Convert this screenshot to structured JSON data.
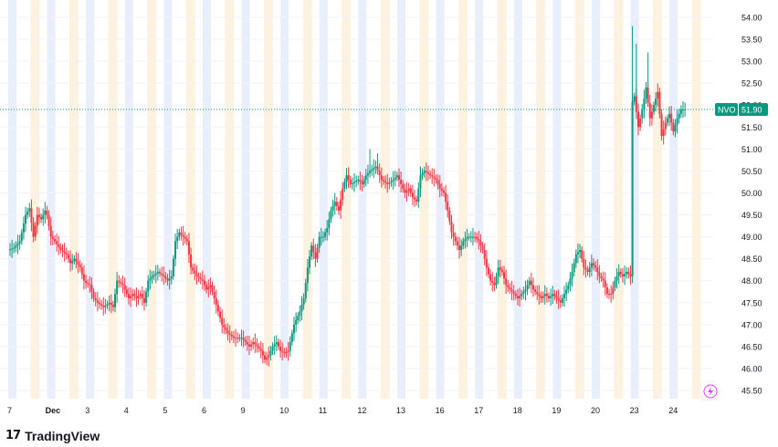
{
  "chart_data": {
    "type": "candlestick",
    "ticker": "NVO",
    "last_price_label": "51.90",
    "last_price": 51.9,
    "ylim": [
      45.3,
      54.3
    ],
    "y_ticks": [
      "54.00",
      "53.50",
      "53.00",
      "52.50",
      "52.00",
      "51.50",
      "51.00",
      "50.50",
      "50.00",
      "49.50",
      "49.00",
      "48.50",
      "48.00",
      "47.50",
      "47.00",
      "46.50",
      "46.00",
      "45.50"
    ],
    "x_labels": [
      {
        "label": "7",
        "day": 0
      },
      {
        "label": "Dec",
        "day": 1,
        "bold": true
      },
      {
        "label": "3",
        "day": 2
      },
      {
        "label": "4",
        "day": 3
      },
      {
        "label": "5",
        "day": 4
      },
      {
        "label": "6",
        "day": 5
      },
      {
        "label": "9",
        "day": 6
      },
      {
        "label": "10",
        "day": 7
      },
      {
        "label": "11",
        "day": 8
      },
      {
        "label": "12",
        "day": 9
      },
      {
        "label": "13",
        "day": 10
      },
      {
        "label": "16",
        "day": 11
      },
      {
        "label": "17",
        "day": 12
      },
      {
        "label": "18",
        "day": 13
      },
      {
        "label": "19",
        "day": 14
      },
      {
        "label": "20",
        "day": 15
      },
      {
        "label": "23",
        "day": 16
      },
      {
        "label": "24",
        "day": 17
      }
    ],
    "close_path": [
      [
        0.0,
        48.7
      ],
      [
        0.15,
        48.75
      ],
      [
        0.3,
        48.9
      ],
      [
        0.45,
        49.5
      ],
      [
        0.55,
        49.65
      ],
      [
        0.65,
        49.0
      ],
      [
        0.75,
        49.5
      ],
      [
        0.85,
        49.4
      ],
      [
        0.95,
        49.6
      ],
      [
        1.0,
        49.5
      ],
      [
        1.1,
        49.0
      ],
      [
        1.2,
        48.9
      ],
      [
        1.35,
        48.7
      ],
      [
        1.5,
        48.6
      ],
      [
        1.6,
        48.4
      ],
      [
        1.7,
        48.5
      ],
      [
        1.85,
        48.3
      ],
      [
        1.95,
        48.0
      ],
      [
        2.0,
        47.95
      ],
      [
        2.1,
        47.9
      ],
      [
        2.2,
        47.6
      ],
      [
        2.3,
        47.5
      ],
      [
        2.45,
        47.4
      ],
      [
        2.6,
        47.5
      ],
      [
        2.7,
        47.4
      ],
      [
        2.8,
        48.0
      ],
      [
        2.95,
        47.9
      ],
      [
        3.0,
        47.8
      ],
      [
        3.1,
        47.6
      ],
      [
        3.2,
        47.7
      ],
      [
        3.3,
        47.6
      ],
      [
        3.4,
        47.7
      ],
      [
        3.5,
        47.5
      ],
      [
        3.6,
        48.0
      ],
      [
        3.7,
        48.1
      ],
      [
        3.85,
        48.2
      ],
      [
        4.0,
        48.1
      ],
      [
        4.1,
        48.0
      ],
      [
        4.2,
        48.1
      ],
      [
        4.3,
        48.9
      ],
      [
        4.4,
        49.1
      ],
      [
        4.5,
        49.0
      ],
      [
        4.6,
        48.9
      ],
      [
        4.7,
        48.3
      ],
      [
        4.85,
        48.1
      ],
      [
        5.0,
        48.0
      ],
      [
        5.1,
        47.8
      ],
      [
        5.2,
        47.9
      ],
      [
        5.3,
        47.6
      ],
      [
        5.4,
        47.3
      ],
      [
        5.5,
        47.0
      ],
      [
        5.65,
        46.8
      ],
      [
        5.8,
        46.7
      ],
      [
        6.0,
        46.7
      ],
      [
        6.1,
        46.6
      ],
      [
        6.2,
        46.5
      ],
      [
        6.3,
        46.6
      ],
      [
        6.4,
        46.5
      ],
      [
        6.5,
        46.4
      ],
      [
        6.6,
        46.2
      ],
      [
        6.7,
        46.3
      ],
      [
        6.8,
        46.5
      ],
      [
        6.9,
        46.6
      ],
      [
        7.0,
        46.4
      ],
      [
        7.1,
        46.35
      ],
      [
        7.2,
        46.4
      ],
      [
        7.35,
        47.0
      ],
      [
        7.5,
        47.3
      ],
      [
        7.6,
        47.6
      ],
      [
        7.7,
        48.3
      ],
      [
        7.8,
        48.8
      ],
      [
        7.9,
        48.5
      ],
      [
        8.0,
        49.0
      ],
      [
        8.1,
        49.0
      ],
      [
        8.2,
        49.2
      ],
      [
        8.3,
        49.6
      ],
      [
        8.4,
        49.8
      ],
      [
        8.5,
        49.6
      ],
      [
        8.6,
        50.1
      ],
      [
        8.7,
        50.4
      ],
      [
        8.8,
        50.2
      ],
      [
        8.9,
        50.25
      ],
      [
        9.0,
        50.3
      ],
      [
        9.1,
        50.2
      ],
      [
        9.2,
        50.4
      ],
      [
        9.3,
        50.5
      ],
      [
        9.45,
        50.6
      ],
      [
        9.6,
        50.3
      ],
      [
        9.75,
        50.2
      ],
      [
        9.9,
        50.3
      ],
      [
        10.0,
        50.4
      ],
      [
        10.1,
        50.2
      ],
      [
        10.2,
        50.0
      ],
      [
        10.3,
        50.1
      ],
      [
        10.4,
        49.9
      ],
      [
        10.5,
        49.8
      ],
      [
        10.6,
        50.4
      ],
      [
        10.7,
        50.5
      ],
      [
        10.85,
        50.4
      ],
      [
        11.0,
        50.3
      ],
      [
        11.1,
        50.1
      ],
      [
        11.2,
        50.0
      ],
      [
        11.3,
        49.6
      ],
      [
        11.4,
        49.1
      ],
      [
        11.5,
        48.9
      ],
      [
        11.6,
        48.7
      ],
      [
        11.7,
        48.9
      ],
      [
        11.8,
        49.0
      ],
      [
        12.0,
        49.0
      ],
      [
        12.1,
        48.9
      ],
      [
        12.2,
        48.7
      ],
      [
        12.3,
        48.3
      ],
      [
        12.4,
        48.0
      ],
      [
        12.5,
        47.9
      ],
      [
        12.6,
        48.3
      ],
      [
        12.7,
        48.2
      ],
      [
        12.8,
        47.9
      ],
      [
        12.9,
        47.8
      ],
      [
        13.0,
        47.7
      ],
      [
        13.1,
        47.6
      ],
      [
        13.2,
        47.7
      ],
      [
        13.3,
        47.8
      ],
      [
        13.4,
        48.0
      ],
      [
        13.5,
        47.8
      ],
      [
        13.6,
        47.7
      ],
      [
        13.7,
        47.6
      ],
      [
        13.8,
        47.7
      ],
      [
        13.9,
        47.6
      ],
      [
        14.0,
        47.7
      ],
      [
        14.1,
        47.6
      ],
      [
        14.2,
        47.5
      ],
      [
        14.3,
        47.7
      ],
      [
        14.4,
        47.9
      ],
      [
        14.5,
        48.2
      ],
      [
        14.6,
        48.6
      ],
      [
        14.7,
        48.7
      ],
      [
        14.8,
        48.3
      ],
      [
        14.9,
        48.2
      ],
      [
        15.0,
        48.4
      ],
      [
        15.1,
        48.3
      ],
      [
        15.2,
        48.1
      ],
      [
        15.3,
        48.0
      ],
      [
        15.4,
        47.7
      ],
      [
        15.5,
        47.7
      ],
      [
        15.6,
        48.0
      ],
      [
        15.7,
        48.2
      ],
      [
        15.8,
        48.1
      ],
      [
        15.9,
        48.2
      ],
      [
        16.0,
        48.1
      ],
      [
        16.02,
        52.0
      ],
      [
        16.1,
        52.2
      ],
      [
        16.2,
        51.5
      ],
      [
        16.3,
        51.9
      ],
      [
        16.4,
        52.4
      ],
      [
        16.5,
        51.7
      ],
      [
        16.6,
        52.0
      ],
      [
        16.7,
        52.3
      ],
      [
        16.8,
        51.3
      ],
      [
        16.9,
        51.6
      ],
      [
        17.0,
        51.8
      ],
      [
        17.1,
        51.4
      ],
      [
        17.2,
        51.7
      ],
      [
        17.3,
        51.9
      ],
      [
        17.4,
        51.9
      ]
    ],
    "down_spans": [
      [
        0.65,
        0.75
      ],
      [
        1.05,
        1.35
      ],
      [
        1.85,
        2.45
      ],
      [
        3.05,
        3.35
      ],
      [
        4.45,
        4.55
      ],
      [
        4.65,
        5.85
      ],
      [
        5.95,
        6.65
      ],
      [
        6.85,
        7.15
      ],
      [
        7.8,
        7.9
      ],
      [
        8.45,
        8.55
      ],
      [
        9.55,
        9.8
      ],
      [
        10.05,
        10.5
      ],
      [
        10.8,
        11.55
      ],
      [
        12.15,
        12.5
      ],
      [
        12.6,
        13.15
      ],
      [
        13.45,
        13.75
      ],
      [
        14.05,
        14.2
      ],
      [
        14.75,
        14.9
      ],
      [
        15.05,
        15.55
      ],
      [
        16.1,
        16.25
      ],
      [
        16.45,
        16.55
      ],
      [
        16.65,
        16.9
      ]
    ],
    "spikes": [
      [
        16.0,
        53.8
      ],
      [
        16.1,
        53.4
      ],
      [
        16.4,
        53.2
      ],
      [
        9.25,
        51.0
      ],
      [
        9.45,
        50.9
      ],
      [
        10.55,
        50.6
      ],
      [
        7.35,
        47.2
      ]
    ]
  }
}
